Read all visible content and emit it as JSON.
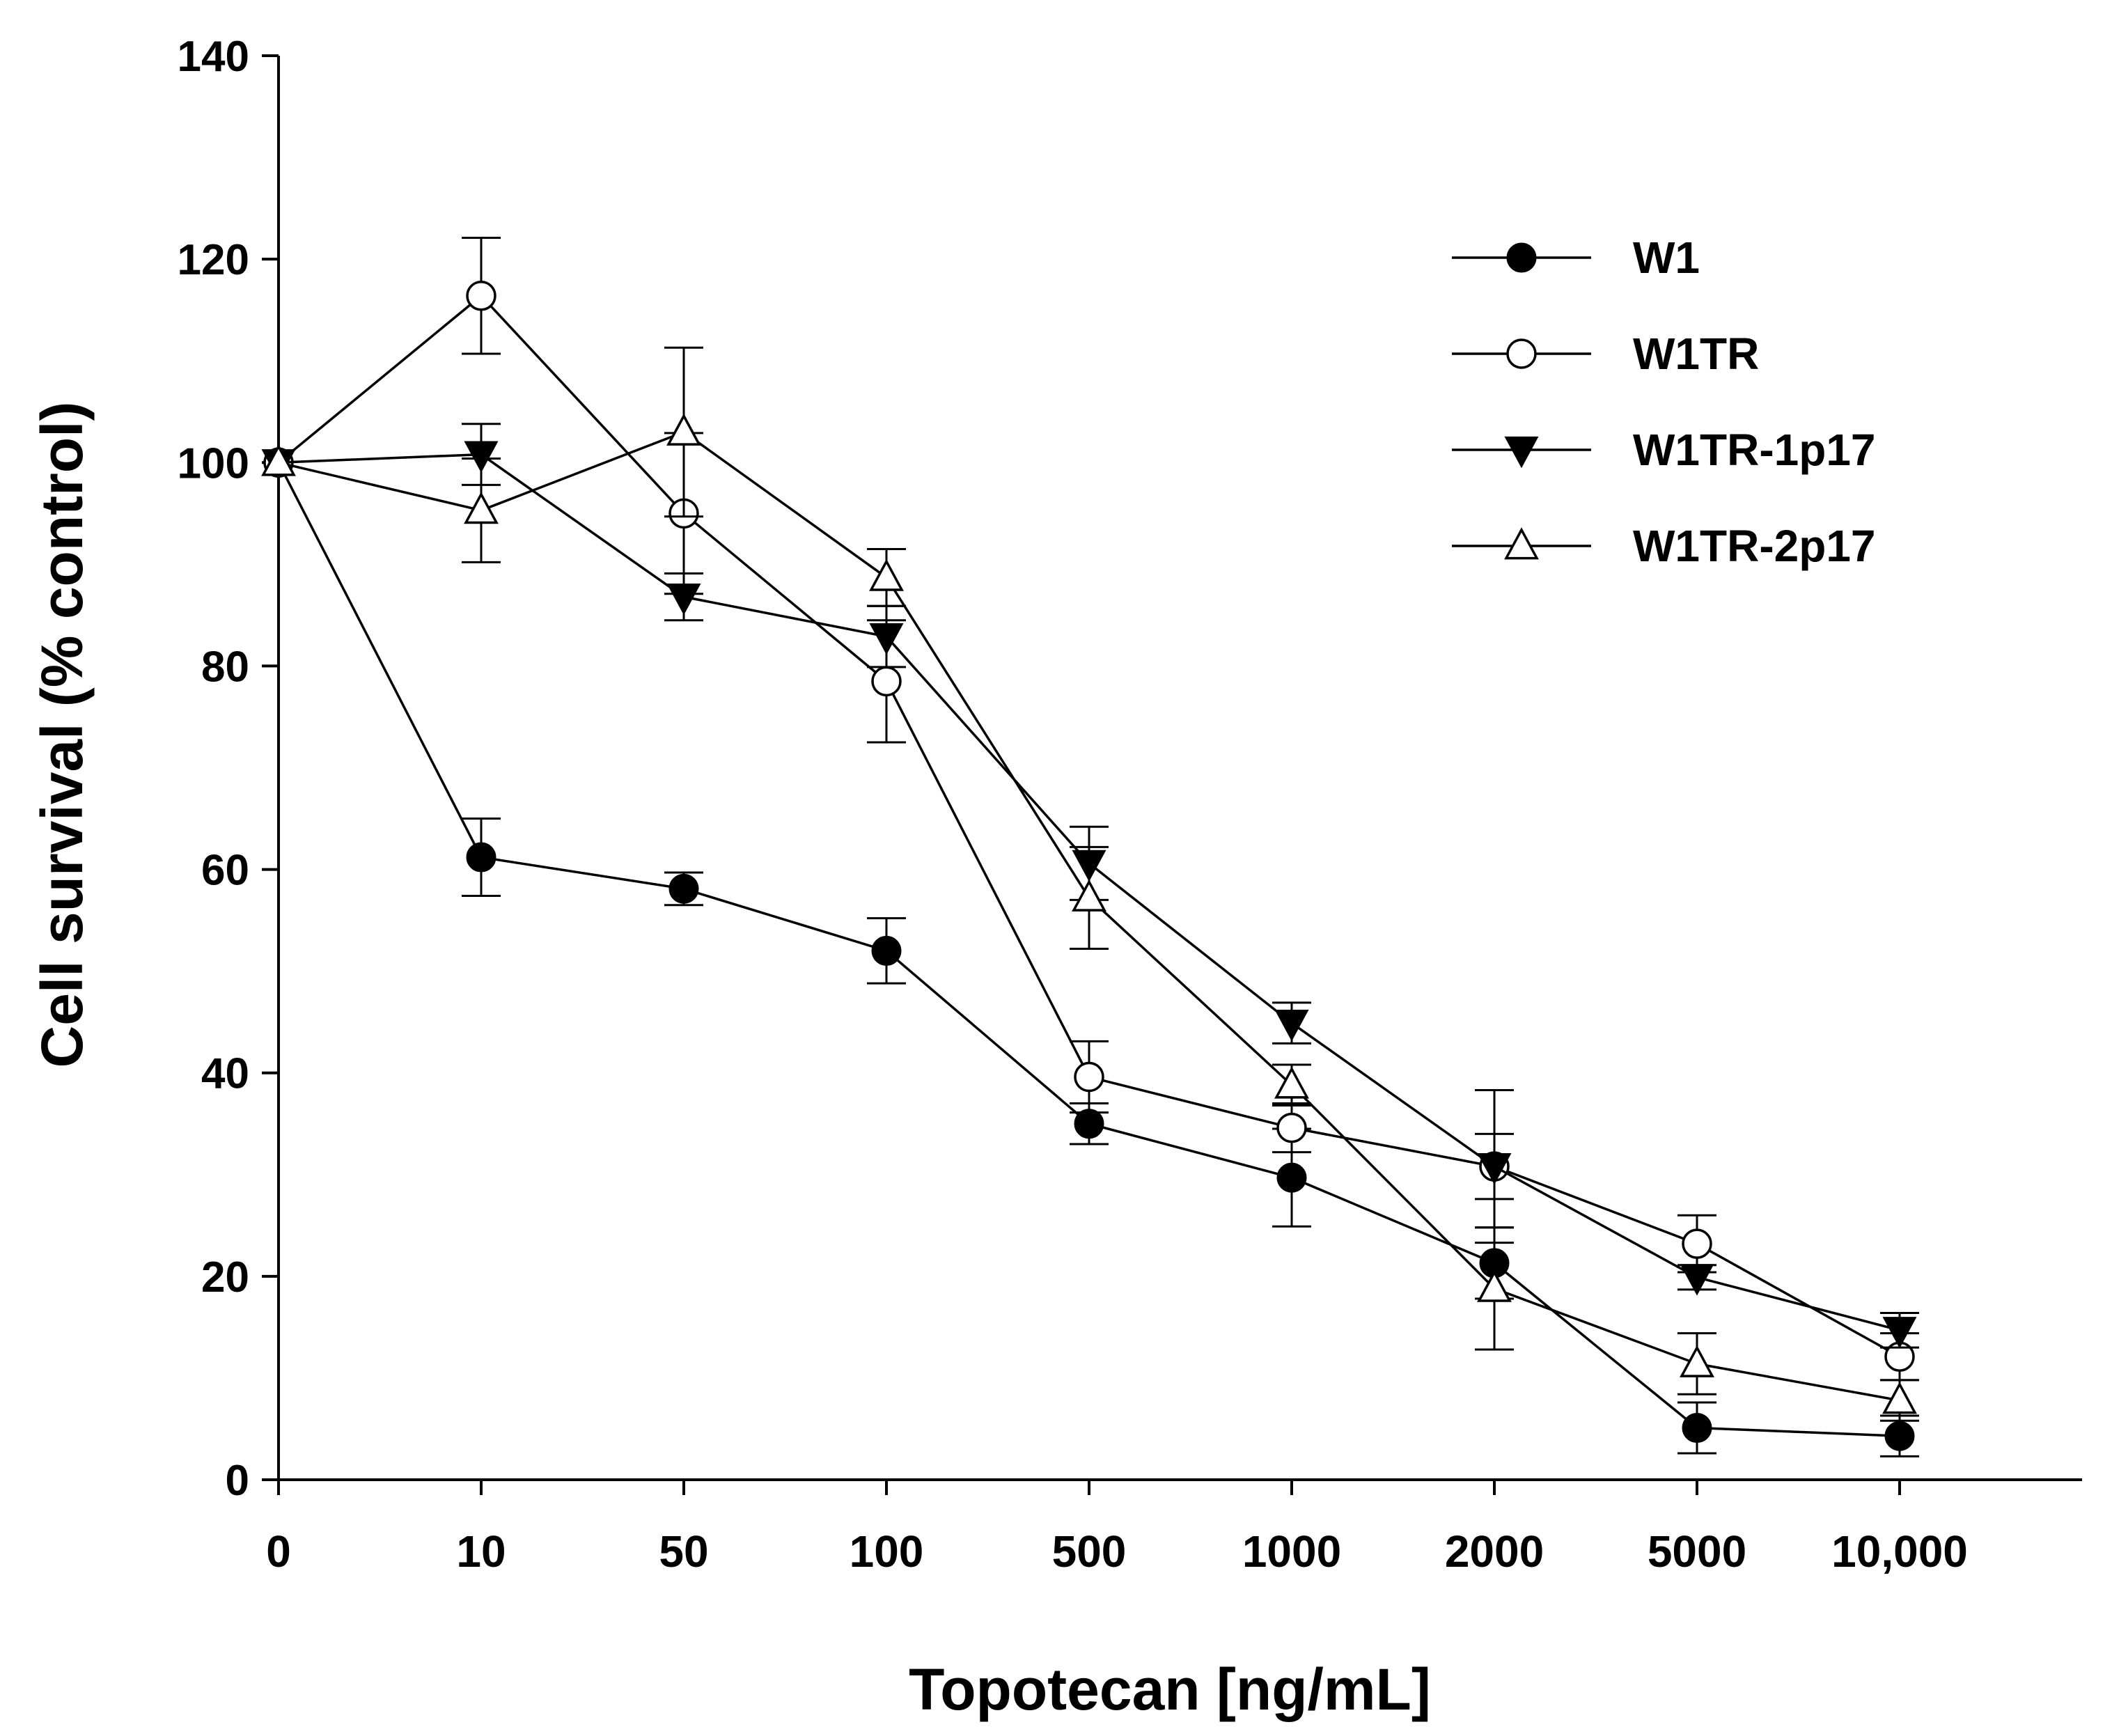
{
  "chart_data": {
    "type": "line",
    "title": "",
    "xlabel": "Topotecan [ng/mL]",
    "ylabel": "Cell survival (% control)",
    "categories": [
      "0",
      "10",
      "50",
      "100",
      "500",
      "1000",
      "2000",
      "5000",
      "10,000"
    ],
    "ylim": [
      0,
      140
    ],
    "yticks": [
      "0",
      "20",
      "40",
      "60",
      "80",
      "100",
      "120",
      "140"
    ],
    "grid": false,
    "legend_position": "top-right",
    "series": [
      {
        "name": "W1",
        "marker": "filled-circle",
        "values": [
          100,
          61.2,
          58.1,
          52.0,
          35.0,
          29.7,
          21.3,
          5.1,
          4.3
        ],
        "errors": [
          0,
          3.8,
          1.6,
          3.2,
          2.0,
          4.8,
          3.5,
          2.5,
          2.0
        ]
      },
      {
        "name": "W1TR",
        "marker": "open-circle",
        "values": [
          100,
          116.4,
          95.0,
          78.5,
          39.6,
          34.6,
          30.8,
          23.2,
          12.1
        ],
        "errors": [
          0,
          5.7,
          7.9,
          6.0,
          3.5,
          2.4,
          3.2,
          2.8,
          2.3
        ]
      },
      {
        "name": "W1TR-1p17",
        "marker": "filled-down-triangle",
        "values": [
          100,
          100.8,
          86.8,
          82.9,
          60.6,
          44.9,
          30.8,
          19.9,
          14.7
        ],
        "errors": [
          0,
          3.0,
          2.3,
          3.0,
          3.6,
          2.0,
          7.5,
          1.2,
          1.7
        ]
      },
      {
        "name": "W1TR-2p17",
        "marker": "open-up-triangle",
        "values": [
          100,
          95.3,
          103.0,
          88.7,
          57.2,
          38.8,
          18.8,
          11.4,
          7.8
        ],
        "errors": [
          0,
          5.1,
          8.3,
          2.8,
          5.0,
          2.0,
          6.0,
          3.0,
          2.0
        ]
      }
    ]
  }
}
